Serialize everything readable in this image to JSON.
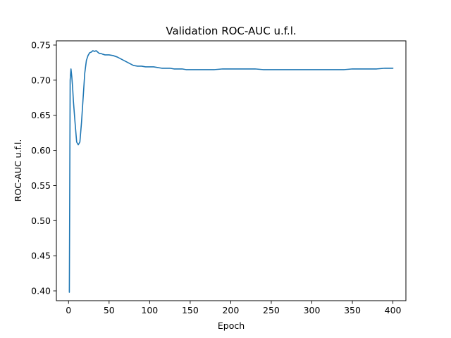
{
  "chart_data": {
    "type": "line",
    "title": "Validation ROC-AUC u.f.l.",
    "xlabel": "Epoch",
    "ylabel": "ROC-AUC u.f.l.",
    "xlim": [
      -15,
      416
    ],
    "ylim": [
      0.386,
      0.756
    ],
    "xticks": [
      0,
      50,
      100,
      150,
      200,
      250,
      300,
      350,
      400
    ],
    "yticks": [
      0.4,
      0.45,
      0.5,
      0.55,
      0.6,
      0.65,
      0.7,
      0.75
    ],
    "grid": false,
    "line_color": "#1f77b4",
    "series": [
      {
        "x": [
          1,
          2,
          3,
          4,
          5,
          6,
          8,
          10,
          12,
          14,
          16,
          18,
          20,
          22,
          24,
          26,
          28,
          30,
          32,
          34,
          36,
          38,
          40,
          42,
          45,
          48,
          50,
          55,
          60,
          65,
          70,
          75,
          80,
          85,
          90,
          95,
          100,
          105,
          110,
          115,
          120,
          125,
          130,
          135,
          140,
          145,
          150,
          160,
          170,
          180,
          190,
          200,
          210,
          220,
          230,
          240,
          250,
          260,
          270,
          280,
          290,
          300,
          310,
          320,
          330,
          340,
          350,
          360,
          370,
          380,
          390,
          395,
          400
        ],
        "y": [
          0.398,
          0.7,
          0.716,
          0.705,
          0.69,
          0.67,
          0.64,
          0.612,
          0.608,
          0.612,
          0.64,
          0.675,
          0.71,
          0.728,
          0.735,
          0.739,
          0.74,
          0.742,
          0.741,
          0.742,
          0.74,
          0.738,
          0.738,
          0.737,
          0.736,
          0.736,
          0.736,
          0.735,
          0.733,
          0.73,
          0.727,
          0.724,
          0.721,
          0.72,
          0.72,
          0.719,
          0.719,
          0.719,
          0.718,
          0.717,
          0.717,
          0.717,
          0.716,
          0.716,
          0.716,
          0.715,
          0.715,
          0.715,
          0.715,
          0.715,
          0.716,
          0.716,
          0.716,
          0.716,
          0.716,
          0.715,
          0.715,
          0.715,
          0.715,
          0.715,
          0.715,
          0.715,
          0.715,
          0.715,
          0.715,
          0.715,
          0.716,
          0.716,
          0.716,
          0.716,
          0.717,
          0.717,
          0.717
        ]
      }
    ]
  }
}
